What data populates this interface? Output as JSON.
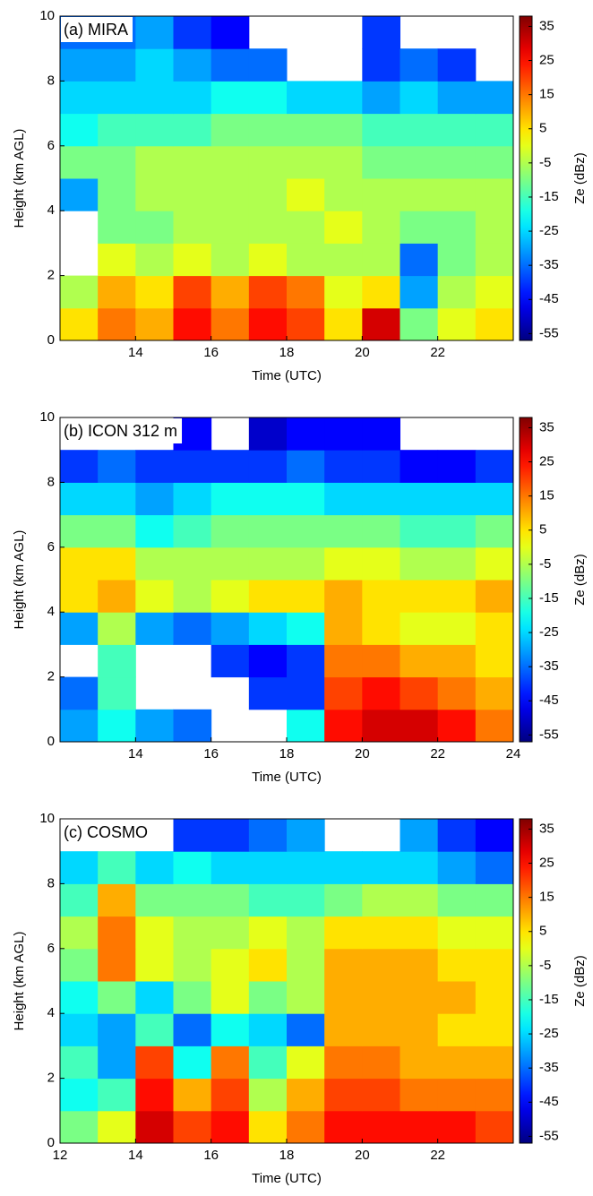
{
  "chart_data": [
    {
      "type": "heatmap",
      "title": "(a) MIRA",
      "xlabel": "Time (UTC)",
      "ylabel": "Height (km AGL)",
      "colorbar_label": "Ze (dBz)",
      "colormap": "jet",
      "x": [
        12.5,
        13.5,
        14.5,
        15.5,
        16.5,
        17.5,
        18.5,
        19.5,
        20.5,
        21.5,
        22.5,
        23.5
      ],
      "y": [
        0.5,
        1.5,
        2.5,
        3.5,
        4.5,
        5.5,
        6.5,
        7.5,
        8.5,
        9.5
      ],
      "values": [
        [
          5,
          15,
          10,
          25,
          15,
          25,
          20,
          5,
          30,
          -10,
          0,
          5
        ],
        [
          -5,
          10,
          5,
          20,
          10,
          20,
          15,
          0,
          5,
          -30,
          -5,
          0
        ],
        [
          null,
          0,
          -5,
          0,
          -5,
          0,
          -5,
          -5,
          -5,
          -35,
          -10,
          -5
        ],
        [
          null,
          -10,
          -10,
          -5,
          -5,
          -5,
          -5,
          0,
          -5,
          -10,
          -10,
          -5
        ],
        [
          -30,
          -10,
          -5,
          -5,
          -5,
          -5,
          0,
          -5,
          -5,
          -5,
          -5,
          -5
        ],
        [
          -10,
          -10,
          -5,
          -5,
          -5,
          -5,
          -5,
          -5,
          -10,
          -10,
          -10,
          -10
        ],
        [
          -20,
          -15,
          -15,
          -15,
          -10,
          -10,
          -10,
          -10,
          -15,
          -15,
          -15,
          -15
        ],
        [
          -25,
          -25,
          -25,
          -25,
          -20,
          -20,
          -25,
          -25,
          -30,
          -25,
          -30,
          -30
        ],
        [
          -30,
          -30,
          -25,
          -30,
          -35,
          -35,
          null,
          null,
          -40,
          -35,
          -40,
          null
        ],
        [
          -35,
          -35,
          -30,
          -40,
          -45,
          null,
          null,
          null,
          -40,
          null,
          null,
          null
        ]
      ],
      "xlim": [
        12,
        24
      ],
      "ylim": [
        0,
        10
      ],
      "xticks": [
        14,
        16,
        18,
        20,
        22
      ],
      "yticks": [
        0,
        2,
        4,
        6,
        8,
        10
      ],
      "clim": [
        -57,
        38
      ],
      "cticks": [
        35,
        25,
        15,
        5,
        -5,
        -15,
        -25,
        -35,
        -45,
        -55
      ]
    },
    {
      "type": "heatmap",
      "title": "(b) ICON 312 m",
      "xlabel": "Time (UTC)",
      "ylabel": "Height (km AGL)",
      "colorbar_label": "Ze (dBz)",
      "colormap": "jet",
      "x": [
        12.5,
        13.5,
        14.5,
        15.5,
        16.5,
        17.5,
        18.5,
        19.5,
        20.5,
        21.5,
        22.5,
        23.5
      ],
      "y": [
        0.5,
        1.5,
        2.5,
        3.5,
        4.5,
        5.5,
        6.5,
        7.5,
        8.5,
        9.5
      ],
      "values": [
        [
          -30,
          -20,
          -30,
          -35,
          null,
          null,
          -20,
          25,
          30,
          30,
          25,
          15
        ],
        [
          -35,
          -15,
          null,
          null,
          null,
          -40,
          -40,
          20,
          25,
          20,
          15,
          10
        ],
        [
          null,
          -15,
          null,
          null,
          -40,
          -45,
          -40,
          15,
          15,
          10,
          10,
          5
        ],
        [
          -30,
          -5,
          -30,
          -35,
          -30,
          -25,
          -20,
          10,
          5,
          0,
          0,
          5
        ],
        [
          5,
          10,
          0,
          -5,
          0,
          5,
          5,
          10,
          5,
          5,
          5,
          10
        ],
        [
          5,
          5,
          -5,
          -5,
          -5,
          -5,
          -5,
          0,
          0,
          -5,
          -5,
          0
        ],
        [
          -10,
          -10,
          -20,
          -15,
          -10,
          -10,
          -10,
          -10,
          -10,
          -15,
          -15,
          -10
        ],
        [
          -25,
          -25,
          -30,
          -25,
          -20,
          -20,
          -20,
          -25,
          -25,
          -25,
          -25,
          -25
        ],
        [
          -40,
          -35,
          -40,
          -40,
          -40,
          -40,
          -35,
          -40,
          -40,
          -45,
          -45,
          -40
        ],
        [
          null,
          null,
          null,
          -45,
          null,
          -50,
          -45,
          -45,
          -45,
          null,
          null,
          null
        ]
      ],
      "xlim": [
        12,
        24
      ],
      "ylim": [
        0,
        10
      ],
      "xticks": [
        14,
        16,
        18,
        20,
        22,
        24
      ],
      "yticks": [
        0,
        2,
        4,
        6,
        8,
        10
      ],
      "clim": [
        -57,
        38
      ],
      "cticks": [
        35,
        25,
        15,
        5,
        -5,
        -15,
        -25,
        -35,
        -45,
        -55
      ]
    },
    {
      "type": "heatmap",
      "title": "(c) COSMO",
      "xlabel": "Time (UTC)",
      "ylabel": "Height (km AGL)",
      "colorbar_label": "Ze (dBz)",
      "colormap": "jet",
      "x": [
        12.5,
        13.5,
        14.5,
        15.5,
        16.5,
        17.5,
        18.5,
        19.5,
        20.5,
        21.5,
        22.5,
        23.5
      ],
      "y": [
        0.5,
        1.5,
        2.5,
        3.5,
        4.5,
        5.5,
        6.5,
        7.5,
        8.5,
        9.5
      ],
      "values": [
        [
          -10,
          0,
          30,
          20,
          25,
          5,
          15,
          25,
          25,
          25,
          25,
          20
        ],
        [
          -20,
          -15,
          25,
          10,
          20,
          -5,
          10,
          20,
          20,
          15,
          15,
          15
        ],
        [
          -15,
          -30,
          20,
          -20,
          15,
          -15,
          0,
          15,
          15,
          10,
          10,
          10
        ],
        [
          -25,
          -30,
          -15,
          -35,
          -20,
          -25,
          -35,
          10,
          10,
          10,
          5,
          5
        ],
        [
          -20,
          -10,
          -25,
          -10,
          0,
          -10,
          -5,
          10,
          10,
          10,
          10,
          5
        ],
        [
          -10,
          15,
          0,
          -5,
          0,
          5,
          -5,
          10,
          10,
          10,
          5,
          5
        ],
        [
          -5,
          15,
          0,
          -5,
          -5,
          0,
          -5,
          5,
          5,
          5,
          0,
          0
        ],
        [
          -15,
          10,
          -10,
          -10,
          -10,
          -15,
          -15,
          -10,
          -5,
          -5,
          -10,
          -10
        ],
        [
          -25,
          -15,
          -25,
          -20,
          -25,
          -25,
          -25,
          -25,
          -25,
          -25,
          -30,
          -35
        ],
        [
          null,
          null,
          null,
          -40,
          -40,
          -35,
          -30,
          null,
          null,
          -30,
          -40,
          -45
        ]
      ],
      "xlim": [
        12,
        24
      ],
      "ylim": [
        0,
        10
      ],
      "xticks": [
        12,
        14,
        16,
        18,
        20,
        22
      ],
      "yticks": [
        0,
        2,
        4,
        6,
        8,
        10
      ],
      "clim": [
        -57,
        38
      ],
      "cticks": [
        35,
        25,
        15,
        5,
        -5,
        -15,
        -25,
        -35,
        -45,
        -55
      ]
    }
  ]
}
